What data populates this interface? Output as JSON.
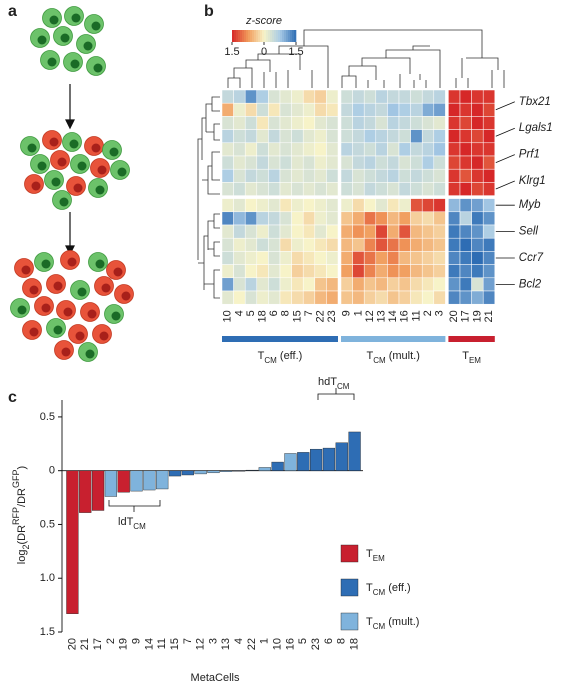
{
  "panel_labels": [
    "a",
    "b",
    "c"
  ],
  "chart_data": [
    {
      "type": "heatmap",
      "title": "z-score",
      "zlim": [
        -1.5,
        1.5
      ],
      "zticks": [
        {
          "value": -1.5,
          "label": "1.5"
        },
        0,
        {
          "value": 1.5,
          "label": "1.5"
        }
      ],
      "groups": [
        {
          "name": {
            "text": "T",
            "sub": "CM",
            "suffix": " (eff.)"
          },
          "color": "#2e6db4",
          "columns": [
            "10",
            "4",
            "5",
            "18",
            "6",
            "8",
            "15",
            "7",
            "22",
            "23"
          ]
        },
        {
          "name": {
            "text": "T",
            "sub": "CM",
            "suffix": " (mult.)"
          },
          "color": "#7fb3dc",
          "columns": [
            "9",
            "1",
            "12",
            "13",
            "14",
            "16",
            "11",
            "2",
            "3"
          ]
        },
        {
          "name": {
            "text": "T",
            "sub": "EM",
            "suffix": ""
          },
          "color": "#c8202f",
          "columns": [
            "20",
            "17",
            "19",
            "21"
          ]
        }
      ],
      "rows": [
        null,
        "Tbx21",
        null,
        "Lgals1",
        null,
        "Prf1",
        null,
        "Klrg1",
        "Myb",
        null,
        "Sell",
        null,
        "Ccr7",
        null,
        "Bcl2",
        null
      ],
      "values": [
        [
          0.5,
          0.6,
          1.2,
          0.7,
          0.3,
          0.2,
          0.1,
          -0.2,
          -0.3,
          0.1,
          0.4,
          0.5,
          0.4,
          0.6,
          0.5,
          0.5,
          0.4,
          0.5,
          0.6,
          -1.4,
          -1.5,
          -1.4,
          -1.4
        ],
        [
          -0.6,
          0.1,
          -0.2,
          0.4,
          -0.1,
          0.3,
          0.2,
          0.1,
          -0.2,
          -0.1,
          0.5,
          0.7,
          0.6,
          0.5,
          0.8,
          0.7,
          0.6,
          1.0,
          1.1,
          -1.5,
          -1.4,
          -1.5,
          -1.3
        ],
        [
          0.3,
          0.2,
          0.4,
          -0.1,
          0.3,
          0.2,
          0.1,
          0.0,
          0.2,
          0.3,
          0.4,
          0.6,
          0.5,
          0.3,
          0.6,
          0.5,
          0.4,
          0.3,
          0.2,
          -1.4,
          -1.3,
          -1.5,
          -1.4
        ],
        [
          0.6,
          0.4,
          0.5,
          0.2,
          0.5,
          0.3,
          0.4,
          0.2,
          0.1,
          0.3,
          0.4,
          0.5,
          0.7,
          0.6,
          0.5,
          0.4,
          1.2,
          0.5,
          0.7,
          -1.5,
          -1.4,
          -1.3,
          -1.5
        ],
        [
          0.2,
          0.3,
          0.1,
          0.4,
          0.2,
          0.3,
          0.2,
          0.1,
          0.0,
          0.2,
          0.6,
          0.5,
          0.4,
          0.6,
          0.3,
          0.7,
          0.5,
          0.6,
          0.8,
          -1.4,
          -1.5,
          -1.4,
          -1.4
        ],
        [
          0.4,
          0.2,
          0.3,
          0.5,
          0.3,
          0.4,
          0.2,
          0.3,
          0.1,
          0.2,
          0.3,
          0.5,
          0.6,
          0.4,
          0.5,
          0.3,
          0.4,
          0.7,
          0.4,
          -1.3,
          -1.4,
          -1.5,
          -1.2
        ],
        [
          0.7,
          0.3,
          0.5,
          0.4,
          0.6,
          0.3,
          0.2,
          0.3,
          0.2,
          0.4,
          0.5,
          0.3,
          0.4,
          0.5,
          0.6,
          0.4,
          0.5,
          0.4,
          0.3,
          -1.4,
          -1.2,
          -1.4,
          -1.5
        ],
        [
          0.3,
          0.4,
          0.2,
          0.3,
          0.4,
          0.2,
          0.3,
          0.2,
          0.3,
          0.2,
          0.4,
          0.3,
          0.5,
          0.4,
          0.3,
          0.5,
          0.4,
          0.3,
          0.4,
          -1.4,
          -1.5,
          -1.3,
          -1.4
        ],
        [
          0.1,
          0.2,
          0.0,
          0.1,
          0.2,
          -0.1,
          0.1,
          0.0,
          0.1,
          0.2,
          0.1,
          -0.2,
          0.0,
          0.2,
          -0.1,
          0.1,
          -1.2,
          -1.3,
          -1.4,
          0.9,
          1.2,
          1.1,
          0.8
        ],
        [
          1.3,
          0.9,
          1.2,
          0.6,
          0.5,
          0.3,
          0.0,
          -0.2,
          0.1,
          0.2,
          -0.4,
          -0.6,
          -1.0,
          -0.8,
          -0.5,
          -0.7,
          -0.3,
          -0.2,
          -0.4,
          1.3,
          0.6,
          1.4,
          1.2
        ],
        [
          0.2,
          0.5,
          0.3,
          0.1,
          0.4,
          0.2,
          0.0,
          -0.1,
          0.2,
          0.0,
          -0.6,
          -0.8,
          -0.7,
          -1.3,
          -0.6,
          -1.2,
          -0.5,
          -0.4,
          -0.3,
          1.4,
          1.3,
          1.2,
          0.7
        ],
        [
          0.3,
          0.1,
          0.2,
          0.4,
          0.3,
          -0.2,
          0.1,
          0.0,
          -0.1,
          -0.2,
          -0.5,
          -0.4,
          -0.9,
          -1.2,
          -1.0,
          -0.8,
          -0.6,
          -0.5,
          -0.4,
          1.4,
          1.5,
          1.3,
          1.4
        ],
        [
          0.4,
          0.2,
          0.1,
          0.0,
          0.3,
          0.1,
          -0.2,
          -0.1,
          0.0,
          0.1,
          -0.6,
          -1.2,
          -1.0,
          -0.7,
          -0.9,
          -0.5,
          -0.4,
          -0.3,
          -0.2,
          1.3,
          1.4,
          1.5,
          1.3
        ],
        [
          0.1,
          0.3,
          0.0,
          -0.1,
          0.2,
          0.0,
          -0.3,
          -0.2,
          -0.1,
          0.0,
          -0.7,
          -1.3,
          -0.9,
          -0.6,
          -0.8,
          -0.7,
          -0.5,
          -0.4,
          -0.3,
          1.4,
          1.3,
          1.4,
          1.2
        ],
        [
          1.1,
          0.3,
          0.6,
          0.2,
          0.4,
          0.1,
          -0.1,
          0.0,
          -0.4,
          -0.5,
          -0.3,
          -0.6,
          -0.4,
          -0.5,
          -0.3,
          -0.4,
          -0.2,
          -0.1,
          0.0,
          1.2,
          1.4,
          0.3,
          1.1
        ],
        [
          0.2,
          0.0,
          0.3,
          0.1,
          0.2,
          -0.1,
          -0.2,
          -0.3,
          -0.5,
          -0.6,
          -0.4,
          -0.5,
          -0.3,
          -0.2,
          -0.4,
          -0.3,
          -0.1,
          0.0,
          -0.2,
          1.3,
          1.2,
          1.0,
          1.3
        ]
      ]
    },
    {
      "type": "bar",
      "y_label": [
        {
          "text": "log"
        },
        {
          "text": "2",
          "shift": "sub"
        },
        {
          "text": "(DR"
        },
        {
          "text": "RFP",
          "shift": "super"
        },
        {
          "text": "/DR"
        },
        {
          "text": "GFP",
          "shift": "super"
        },
        {
          "text": ")"
        }
      ],
      "x_label": "MetaCells",
      "categories": [
        "20",
        "21",
        "17",
        "2",
        "19",
        "9",
        "14",
        "11",
        "15",
        "7",
        "12",
        "3",
        "13",
        "4",
        "22",
        "1",
        "10",
        "16",
        "5",
        "23",
        "6",
        "8",
        "18"
      ],
      "values": [
        -1.33,
        -0.39,
        -0.37,
        -0.24,
        -0.2,
        -0.19,
        -0.18,
        -0.17,
        -0.05,
        -0.04,
        -0.03,
        -0.02,
        -0.01,
        -0.005,
        0.005,
        0.03,
        0.08,
        0.16,
        0.17,
        0.2,
        0.21,
        0.26,
        0.36
      ],
      "colors": [
        "#c8202f",
        "#c8202f",
        "#c8202f",
        "#7fb3dc",
        "#c8202f",
        "#7fb3dc",
        "#7fb3dc",
        "#7fb3dc",
        "#2e6db4",
        "#2e6db4",
        "#7fb3dc",
        "#7fb3dc",
        "#7fb3dc",
        "#2e6db4",
        "#2e6db4",
        "#7fb3dc",
        "#2e6db4",
        "#7fb3dc",
        "#2e6db4",
        "#2e6db4",
        "#2e6db4",
        "#2e6db4",
        "#2e6db4"
      ],
      "ylim": [
        -1.5,
        0.62
      ],
      "yticks": [
        {
          "value": 0.5,
          "label": "0.5"
        },
        0,
        {
          "value": -0.5,
          "label": "0.5"
        },
        {
          "value": -1.0,
          "label": "1.0"
        },
        {
          "value": -1.5,
          "label": "1.5"
        }
      ],
      "legend": [
        {
          "name": {
            "text": "T",
            "sub": "EM",
            "suffix": ""
          },
          "color": "#c8202f"
        },
        {
          "name": {
            "text": "T",
            "sub": "CM",
            "suffix": " (eff.)"
          },
          "color": "#2e6db4"
        },
        {
          "name": {
            "text": "T",
            "sub": "CM",
            "suffix": " (mult.)"
          },
          "color": "#7fb3dc"
        }
      ],
      "annotations": [
        {
          "text": "ld",
          "sub": "CM",
          "mid": "T"
        },
        {
          "text": "hd",
          "sub": "CM",
          "mid": "T"
        }
      ]
    }
  ]
}
